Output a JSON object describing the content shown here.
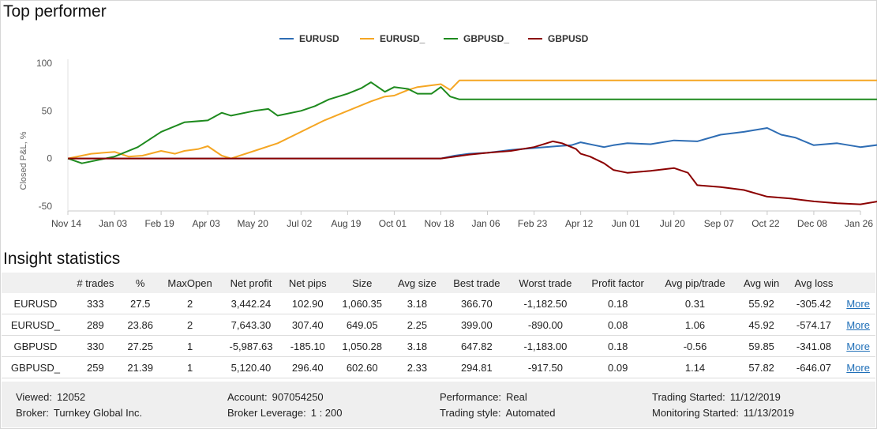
{
  "titles": {
    "top_performer": "Top performer",
    "insight": "Insight statistics"
  },
  "chart_data": {
    "type": "line",
    "ylabel": "Closed P&L, %",
    "xlabel": "",
    "ylim": [
      -55,
      100
    ],
    "yticks": [
      100,
      50,
      0,
      -50
    ],
    "xticks": [
      "Nov 14",
      "Jan 03",
      "Feb 19",
      "Apr 03",
      "May 20",
      "Jul 02",
      "Aug 19",
      "Oct 01",
      "Nov 18",
      "Jan 06",
      "Feb 23",
      "Apr 12",
      "Jun 01",
      "Jul 20",
      "Sep 07",
      "Oct 22",
      "Dec 08",
      "Jan 26"
    ],
    "grid": false,
    "legend": "top",
    "series": [
      {
        "name": "EURUSD",
        "color": "#2e6db4",
        "x": [
          0,
          8,
          8.3,
          8.6,
          9,
          9.5,
          10,
          10.5,
          10.8,
          11,
          11.3,
          11.5,
          11.7,
          12,
          12.5,
          13,
          13.5,
          14,
          14.5,
          15,
          15.3,
          15.6,
          16,
          16.5,
          17,
          17.5,
          17.9
        ],
        "y": [
          0,
          0,
          3,
          5,
          6,
          9,
          11,
          13,
          14,
          17,
          14,
          12,
          14,
          16,
          15,
          19,
          18,
          25,
          28,
          32,
          25,
          22,
          14,
          16,
          12,
          15,
          8
        ]
      },
      {
        "name": "EURUSD_",
        "color": "#f5a623",
        "x": [
          0,
          0.5,
          1,
          1.3,
          1.6,
          2,
          2.3,
          2.5,
          2.8,
          3,
          3.3,
          3.5,
          4,
          4.5,
          5,
          5.5,
          6,
          6.5,
          6.8,
          7,
          7.3,
          7.5,
          8,
          8.2,
          8.4,
          17.9
        ],
        "y": [
          0,
          5,
          7,
          2,
          3,
          8,
          5,
          8,
          10,
          13,
          3,
          0,
          8,
          16,
          28,
          40,
          50,
          60,
          65,
          66,
          72,
          75,
          78,
          72,
          82,
          82
        ]
      },
      {
        "name": "GBPUSD_",
        "color": "#1e8a1e",
        "x": [
          0,
          0.3,
          0.5,
          1,
          1.5,
          2,
          2.5,
          3,
          3.3,
          3.5,
          4,
          4.3,
          4.5,
          5,
          5.3,
          5.6,
          6,
          6.3,
          6.5,
          6.8,
          7,
          7.3,
          7.5,
          7.8,
          8,
          8.2,
          8.4,
          17.9
        ],
        "y": [
          0,
          -5,
          -3,
          2,
          12,
          28,
          38,
          40,
          48,
          45,
          50,
          52,
          45,
          50,
          55,
          62,
          68,
          74,
          80,
          70,
          75,
          73,
          68,
          68,
          75,
          65,
          62,
          62
        ]
      },
      {
        "name": "GBPUSD",
        "color": "#8b0000",
        "x": [
          0,
          8,
          8.3,
          8.6,
          9,
          9.5,
          10,
          10.4,
          10.6,
          10.9,
          11,
          11.2,
          11.5,
          11.7,
          12,
          12.5,
          13,
          13.3,
          13.5,
          14,
          14.5,
          15,
          15.5,
          16,
          16.5,
          17,
          17.5,
          17.9
        ],
        "y": [
          0,
          0,
          2,
          4,
          6,
          8,
          12,
          18,
          16,
          10,
          5,
          2,
          -5,
          -12,
          -15,
          -13,
          -10,
          -15,
          -28,
          -30,
          -33,
          -40,
          -42,
          -45,
          -47,
          -48,
          -44,
          -46
        ]
      }
    ]
  },
  "stats": {
    "headers": [
      "",
      "# trades",
      "%",
      "MaxOpen",
      "Net profit",
      "Net pips",
      "Size",
      "Avg size",
      "Best trade",
      "Worst trade",
      "Profit factor",
      "Avg pip/trade",
      "Avg win",
      "Avg loss",
      ""
    ],
    "rows": [
      [
        "EURUSD",
        "333",
        "27.5",
        "2",
        "3,442.24",
        "102.90",
        "1,060.35",
        "3.18",
        "366.70",
        "-1,182.50",
        "0.18",
        "0.31",
        "55.92",
        "-305.42",
        "More"
      ],
      [
        "EURUSD_",
        "289",
        "23.86",
        "2",
        "7,643.30",
        "307.40",
        "649.05",
        "2.25",
        "399.00",
        "-890.00",
        "0.08",
        "1.06",
        "45.92",
        "-574.17",
        "More"
      ],
      [
        "GBPUSD",
        "330",
        "27.25",
        "1",
        "-5,987.63",
        "-185.10",
        "1,050.28",
        "3.18",
        "647.82",
        "-1,183.00",
        "0.18",
        "-0.56",
        "59.85",
        "-341.08",
        "More"
      ],
      [
        "GBPUSD_",
        "259",
        "21.39",
        "1",
        "5,120.40",
        "296.40",
        "602.60",
        "2.33",
        "294.81",
        "-917.50",
        "0.09",
        "1.14",
        "57.82",
        "-646.07",
        "More"
      ]
    ]
  },
  "footer": {
    "viewed_label": "Viewed:",
    "viewed": "12052",
    "broker_label": "Broker:",
    "broker": "Turnkey Global Inc.",
    "account_label": "Account:",
    "account": "907054250",
    "leverage_label": "Broker Leverage:",
    "leverage": "1 : 200",
    "performance_label": "Performance:",
    "performance": "Real",
    "style_label": "Trading style:",
    "style": "Automated",
    "started_label": "Trading Started:",
    "started": "11/12/2019",
    "monitoring_label": "Monitoring Started:",
    "monitoring": "11/13/2019"
  }
}
